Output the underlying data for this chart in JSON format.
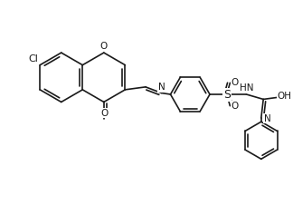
{
  "background_color": "#ffffff",
  "line_color": "#1a1a1a",
  "line_width": 1.2,
  "figsize": [
    3.24,
    2.37
  ],
  "dpi": 100,
  "xlim": [
    0,
    10.5
  ],
  "ylim": [
    0,
    7.8
  ]
}
